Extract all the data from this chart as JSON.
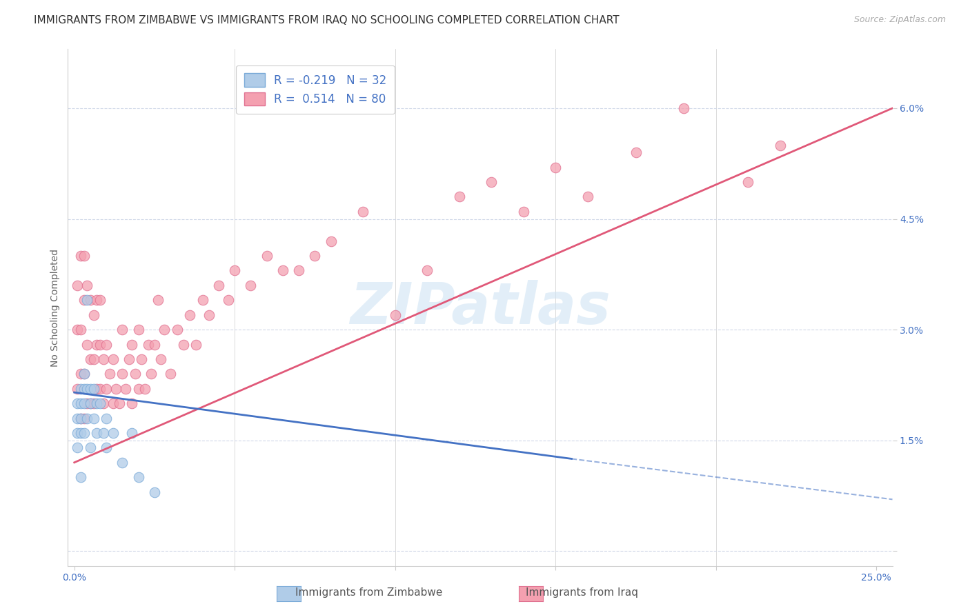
{
  "title": "IMMIGRANTS FROM ZIMBABWE VS IMMIGRANTS FROM IRAQ NO SCHOOLING COMPLETED CORRELATION CHART",
  "source": "Source: ZipAtlas.com",
  "ylabel": "No Schooling Completed",
  "yticks": [
    0.0,
    0.015,
    0.03,
    0.045,
    0.06
  ],
  "ytick_labels": [
    "",
    "1.5%",
    "3.0%",
    "4.5%",
    "6.0%"
  ],
  "xticks": [
    0.0,
    0.05,
    0.1,
    0.15,
    0.2,
    0.25
  ],
  "xtick_labels": [
    "0.0%",
    "",
    "",
    "",
    "",
    "25.0%"
  ],
  "xlim": [
    -0.002,
    0.255
  ],
  "ylim": [
    -0.002,
    0.068
  ],
  "legend_entries": [
    {
      "label_r": "R = ",
      "r_val": "-0.219",
      "label_n": "  N = ",
      "n_val": "32",
      "color": "#a8c4e8",
      "border": "#7aaad8"
    },
    {
      "label_r": "R =  ",
      "r_val": "0.514",
      "label_n": "  N = ",
      "n_val": "80",
      "color": "#f4a0b0",
      "border": "#e07090"
    }
  ],
  "watermark": "ZIPatlas",
  "series_zimbabwe": {
    "color": "#b0cce8",
    "border_color": "#7aaad8",
    "x": [
      0.001,
      0.001,
      0.001,
      0.001,
      0.002,
      0.002,
      0.002,
      0.002,
      0.002,
      0.003,
      0.003,
      0.003,
      0.003,
      0.004,
      0.004,
      0.004,
      0.005,
      0.005,
      0.005,
      0.006,
      0.006,
      0.007,
      0.007,
      0.008,
      0.009,
      0.01,
      0.01,
      0.012,
      0.015,
      0.018,
      0.02,
      0.025
    ],
    "y": [
      0.02,
      0.018,
      0.016,
      0.014,
      0.022,
      0.02,
      0.018,
      0.016,
      0.01,
      0.024,
      0.022,
      0.02,
      0.016,
      0.034,
      0.022,
      0.018,
      0.022,
      0.02,
      0.014,
      0.022,
      0.018,
      0.02,
      0.016,
      0.02,
      0.016,
      0.018,
      0.014,
      0.016,
      0.012,
      0.016,
      0.01,
      0.008
    ]
  },
  "series_iraq": {
    "color": "#f4a0b0",
    "border_color": "#e07090",
    "x": [
      0.001,
      0.001,
      0.001,
      0.002,
      0.002,
      0.002,
      0.002,
      0.003,
      0.003,
      0.003,
      0.003,
      0.004,
      0.004,
      0.004,
      0.005,
      0.005,
      0.005,
      0.006,
      0.006,
      0.006,
      0.007,
      0.007,
      0.007,
      0.008,
      0.008,
      0.008,
      0.009,
      0.009,
      0.01,
      0.01,
      0.011,
      0.012,
      0.012,
      0.013,
      0.014,
      0.015,
      0.015,
      0.016,
      0.017,
      0.018,
      0.018,
      0.019,
      0.02,
      0.02,
      0.021,
      0.022,
      0.023,
      0.024,
      0.025,
      0.026,
      0.027,
      0.028,
      0.03,
      0.032,
      0.034,
      0.036,
      0.038,
      0.04,
      0.042,
      0.045,
      0.048,
      0.05,
      0.055,
      0.06,
      0.065,
      0.07,
      0.075,
      0.08,
      0.09,
      0.1,
      0.11,
      0.12,
      0.13,
      0.14,
      0.15,
      0.16,
      0.175,
      0.19,
      0.21,
      0.22
    ],
    "y": [
      0.022,
      0.03,
      0.036,
      0.018,
      0.024,
      0.03,
      0.04,
      0.018,
      0.024,
      0.034,
      0.04,
      0.02,
      0.028,
      0.036,
      0.02,
      0.026,
      0.034,
      0.02,
      0.026,
      0.032,
      0.022,
      0.028,
      0.034,
      0.022,
      0.028,
      0.034,
      0.02,
      0.026,
      0.022,
      0.028,
      0.024,
      0.02,
      0.026,
      0.022,
      0.02,
      0.024,
      0.03,
      0.022,
      0.026,
      0.02,
      0.028,
      0.024,
      0.022,
      0.03,
      0.026,
      0.022,
      0.028,
      0.024,
      0.028,
      0.034,
      0.026,
      0.03,
      0.024,
      0.03,
      0.028,
      0.032,
      0.028,
      0.034,
      0.032,
      0.036,
      0.034,
      0.038,
      0.036,
      0.04,
      0.038,
      0.038,
      0.04,
      0.042,
      0.046,
      0.032,
      0.038,
      0.048,
      0.05,
      0.046,
      0.052,
      0.048,
      0.054,
      0.06,
      0.05,
      0.055
    ]
  },
  "line_zimbabwe": {
    "color": "#4472c4",
    "x_start": 0.0,
    "y_start": 0.0215,
    "x_end": 0.155,
    "y_end": 0.0125,
    "dashed_x_start": 0.155,
    "dashed_y_start": 0.0125,
    "dashed_x_end": 0.255,
    "dashed_y_end": 0.007
  },
  "line_iraq": {
    "color": "#e05878",
    "x_start": 0.0,
    "y_start": 0.012,
    "x_end": 0.255,
    "y_end": 0.06
  },
  "background_color": "#ffffff",
  "plot_bg_color": "#ffffff",
  "grid_color": "#d0d8e8",
  "title_fontsize": 11,
  "axis_label_fontsize": 10,
  "tick_fontsize": 10,
  "tick_color": "#4472c4",
  "legend_fontsize": 12
}
